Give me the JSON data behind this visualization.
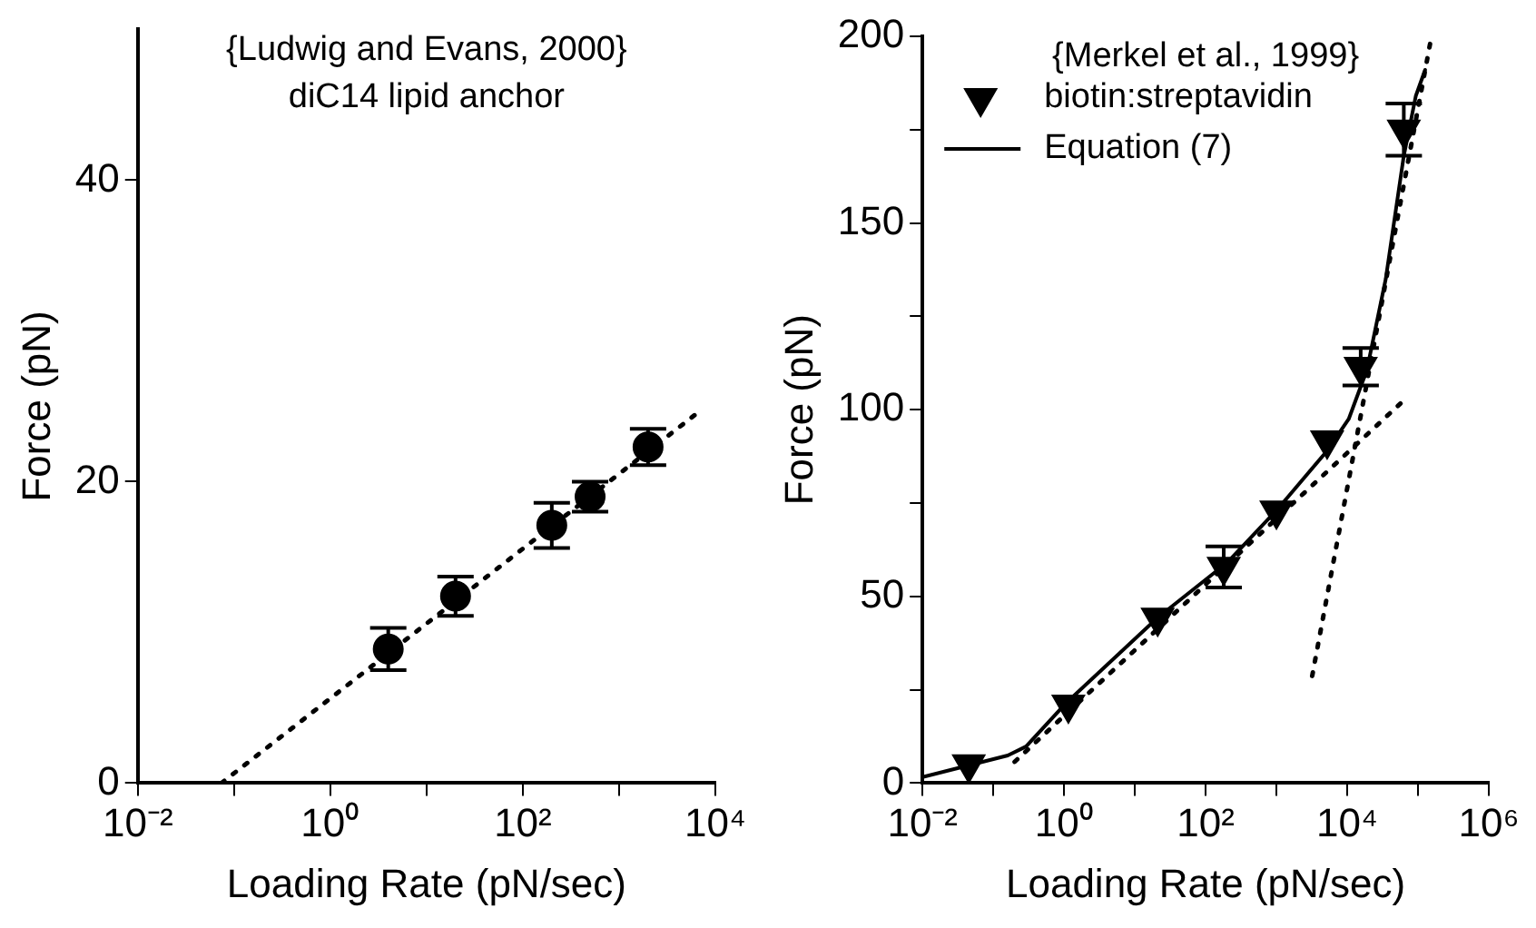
{
  "chart_data": [
    {
      "type": "scatter",
      "xlabel": "Loading Rate (pN/sec)",
      "ylabel": "Force (pN)",
      "annotations": [
        "{Ludwig and Evans, 2000}",
        "diC14 lipid anchor"
      ],
      "log": "x",
      "legend": false,
      "xlim": [
        0.01,
        10000
      ],
      "xticks": [
        {
          "value": 0.01,
          "label": "10⁻²"
        },
        {
          "value": 0.1,
          "label": null
        },
        {
          "value": 1,
          "label": "10⁰"
        },
        {
          "value": 10,
          "label": null
        },
        {
          "value": 100,
          "label": "10²"
        },
        {
          "value": 1000,
          "label": null
        },
        {
          "value": 10000,
          "label": "10⁴"
        }
      ],
      "ylim": [
        0,
        50
      ],
      "yticks": [
        0,
        20,
        40
      ],
      "series": [
        {
          "marker": "circle",
          "color": "#000000",
          "x": [
            4,
            20,
            200,
            500,
            2000
          ],
          "values": [
            8.9,
            12.4,
            17.1,
            19.0,
            22.3
          ],
          "errors": [
            1.4,
            1.3,
            1.5,
            1.0,
            1.2
          ]
        },
        {
          "type": "line",
          "marker": "none",
          "line_style": "dotted",
          "color": "#000000",
          "x": [
            0.074,
            7300
          ],
          "values": [
            0,
            24.8
          ]
        }
      ]
    },
    {
      "type": "scatter",
      "xlabel": "Loading Rate (pN/sec)",
      "ylabel": "Force (pN)",
      "annotations": [
        "{Merkel et al., 1999}"
      ],
      "log": "x",
      "legend": "top left",
      "xlim": [
        0.01,
        1000000
      ],
      "xticks": [
        {
          "value": 0.01,
          "label": "10⁻²"
        },
        {
          "value": 0.1,
          "label": null
        },
        {
          "value": 1,
          "label": "10⁰"
        },
        {
          "value": 10,
          "label": null
        },
        {
          "value": 100,
          "label": "10²"
        },
        {
          "value": 1000,
          "label": null
        },
        {
          "value": 10000,
          "label": "10⁴"
        },
        {
          "value": 100000,
          "label": null
        },
        {
          "value": 1000000,
          "label": "10⁶"
        }
      ],
      "ylim": [
        0,
        200
      ],
      "yticks": [
        0,
        {
          "value": 25,
          "label": null
        },
        50,
        {
          "value": 75,
          "label": null
        },
        100,
        {
          "value": 125,
          "label": null
        },
        150,
        {
          "value": 175,
          "label": null
        },
        200
      ],
      "series": [
        {
          "name": "biotin:streptavidin",
          "marker": "triangle",
          "color": "#000000",
          "x": [
            0.045,
            1.15,
            21,
            180,
            1000,
            5200,
            15500,
            63000
          ],
          "values": [
            5,
            21,
            44.3,
            57.9,
            73,
            91.8,
            111.5,
            175
          ],
          "errors": [
            null,
            null,
            null,
            5.5,
            null,
            null,
            5,
            7
          ]
        },
        {
          "type": "line",
          "name": "Equation (7)",
          "marker": "none",
          "line_style": "solid",
          "color": "#000000",
          "x": [
            0.01,
            0.16,
            0.29,
            1.05,
            21,
            200,
            1000,
            5200,
            10500,
            19000,
            35000,
            63000,
            93000,
            126000
          ],
          "values": [
            1.6,
            7.4,
            9.8,
            21.3,
            44.3,
            59,
            73,
            89,
            97.5,
            110.7,
            135,
            168,
            184,
            191
          ]
        },
        {
          "type": "line",
          "marker": "none",
          "line_style": "dotted",
          "color": "#000000",
          "x": [
            0.2,
            63000
          ],
          "values": [
            5.7,
            102.5
          ]
        },
        {
          "type": "line",
          "marker": "none",
          "line_style": "dotted",
          "color": "#000000",
          "x": [
            3200,
            155000
          ],
          "values": [
            28.7,
            200
          ]
        }
      ]
    }
  ]
}
